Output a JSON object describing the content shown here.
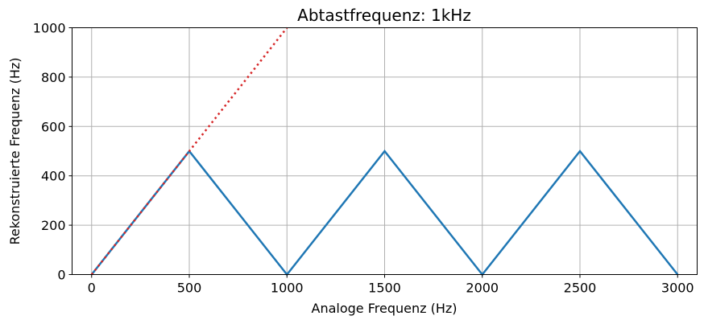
{
  "chart_data": {
    "type": "line",
    "title": "Abtastfrequenz: 1kHz",
    "xlabel": "Analoge Frequenz (Hz)",
    "ylabel": "Rekonstruierte Frequenz (Hz)",
    "xlim": [
      -100,
      3100
    ],
    "ylim": [
      0,
      1000
    ],
    "xticks": [
      0,
      500,
      1000,
      1500,
      2000,
      2500,
      3000
    ],
    "yticks": [
      0,
      200,
      400,
      600,
      800,
      1000
    ],
    "grid": true,
    "series": [
      {
        "color": "#1f77b4",
        "linestyle": "solid",
        "x": [
          0,
          500,
          1000,
          1500,
          2000,
          2500,
          3000
        ],
        "y": [
          0,
          500,
          0,
          500,
          0,
          500,
          0
        ]
      },
      {
        "color": "#d62728",
        "linestyle": "dotted",
        "x": [
          0,
          1000
        ],
        "y": [
          0,
          1000
        ]
      }
    ]
  }
}
